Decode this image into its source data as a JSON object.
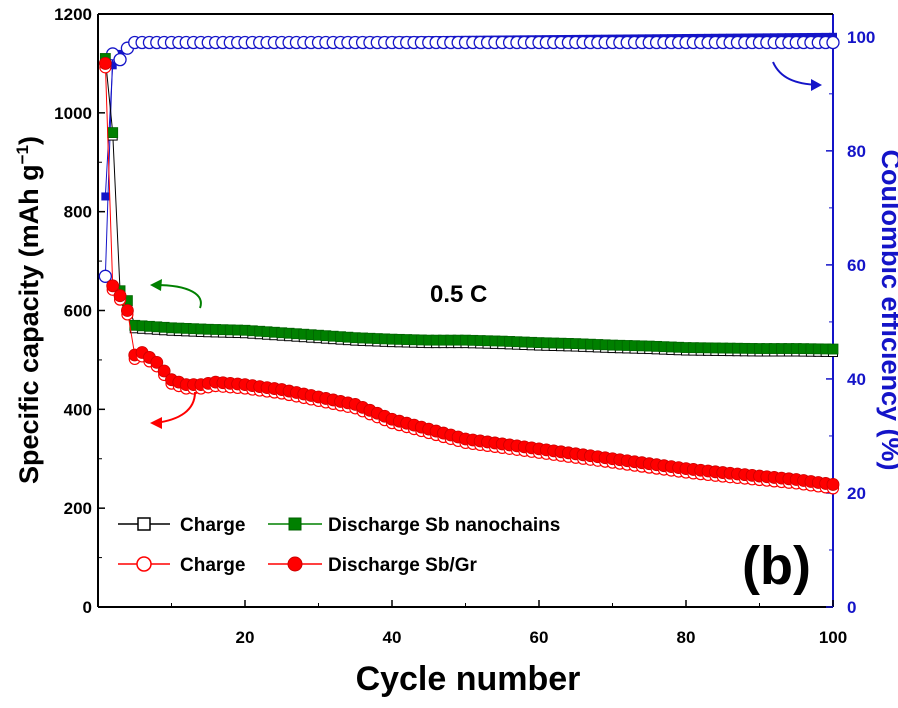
{
  "chart_data": {
    "type": "line",
    "x_axis": {
      "label": "Cycle number",
      "range": [
        0,
        100
      ],
      "ticks": [
        "20",
        "40",
        "60",
        "80",
        "100"
      ]
    },
    "y_axis_left": {
      "label": "Specific capacity (mAh g",
      "label_sup": "−1",
      "label_close": ")",
      "range": [
        0,
        1200
      ],
      "ticks": [
        "0",
        "200",
        "400",
        "600",
        "800",
        "1000",
        "1200"
      ]
    },
    "y_axis_right": {
      "label": "Coulombic efficiency (%)",
      "range": [
        0,
        104
      ],
      "ticks": [
        "0",
        "20",
        "40",
        "60",
        "80",
        "100"
      ],
      "color": "#1414c8"
    },
    "annotation": "0.5 C",
    "panel_label": "(b)",
    "legend": [
      {
        "charge_label": "Charge",
        "discharge_label": "Discharge Sb nanochains",
        "color": "#008000",
        "edge_color": "#000000",
        "marker": "square"
      },
      {
        "charge_label": "Charge",
        "discharge_label": "Discharge Sb/Gr",
        "color": "#ff0000",
        "edge_color": "#ff0000",
        "marker": "circle"
      }
    ],
    "series": [
      {
        "name": "Discharge Sb nanochains",
        "cycles": [
          1,
          2,
          3,
          4,
          5,
          10,
          15,
          20,
          25,
          30,
          35,
          40,
          45,
          50,
          55,
          60,
          65,
          70,
          75,
          80,
          85,
          90,
          95,
          100
        ],
        "capacity": [
          1110,
          960,
          640,
          620,
          570,
          565,
          562,
          560,
          555,
          550,
          545,
          542,
          540,
          540,
          538,
          535,
          533,
          530,
          528,
          525,
          524,
          523,
          523,
          522
        ],
        "color": "#008000"
      },
      {
        "name": "Discharge Sb/Gr",
        "cycles": [
          1,
          2,
          3,
          4,
          5,
          6,
          8,
          10,
          12,
          14,
          16,
          20,
          25,
          30,
          35,
          40,
          45,
          50,
          55,
          60,
          65,
          70,
          75,
          80,
          85,
          90,
          95,
          100
        ],
        "capacity": [
          1100,
          650,
          630,
          600,
          510,
          515,
          495,
          460,
          450,
          450,
          455,
          450,
          440,
          425,
          410,
          380,
          360,
          340,
          330,
          320,
          310,
          300,
          290,
          280,
          272,
          265,
          258,
          248
        ],
        "color": "#ff0000"
      },
      {
        "name": "Coulombic efficiency Sb nanochains",
        "cycles": [
          1,
          2,
          3,
          4,
          5,
          100
        ],
        "efficiency": [
          72,
          95,
          97,
          98,
          99,
          100
        ],
        "color": "#1414c8"
      },
      {
        "name": "Coulombic efficiency Sb/Gr",
        "cycles": [
          1,
          2,
          3,
          4,
          5,
          100
        ],
        "efficiency": [
          58,
          97,
          96,
          98,
          99,
          99
        ],
        "color": "#1414c8"
      }
    ]
  }
}
